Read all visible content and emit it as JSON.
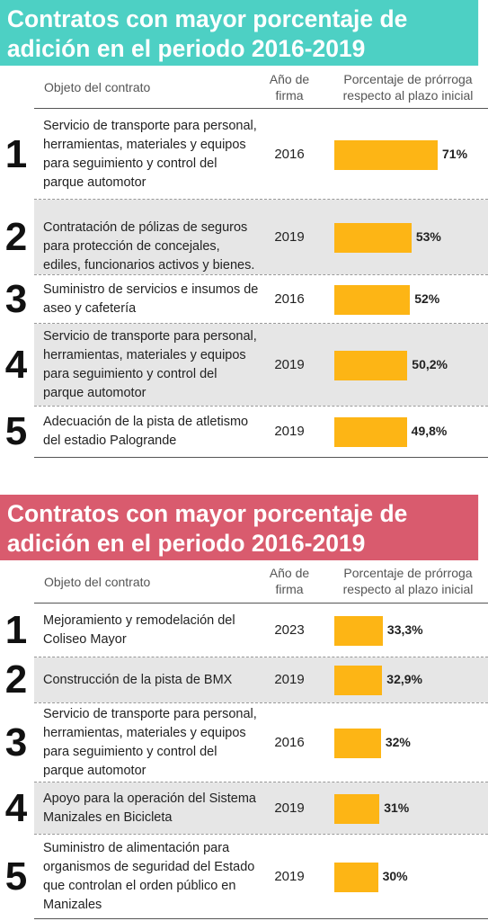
{
  "colors": {
    "accent_teal": "#4dd0c4",
    "accent_red": "#d95b6e",
    "bar": "#fdb515",
    "shade": "#e6e6e6"
  },
  "headers": {
    "object": "Objeto del contrato",
    "year_line1": "Año de",
    "year_line2": "firma",
    "pct_line1": "Porcentaje de prórroga",
    "pct_line2": "respecto al plazo inicial"
  },
  "chart_data": [
    {
      "type": "bar",
      "title_line1": "Contratos con mayor porcentaje de",
      "title_line2": "adición en el periodo 2016-2019",
      "rows": [
        {
          "rank": "1",
          "object": "Servicio de transporte para personal, herramientas, materiales y equipos para seguimiento y control del parque automotor",
          "year": "2016",
          "value": 71,
          "label": "71%"
        },
        {
          "rank": "2",
          "object": "Contratación de pólizas de seguros para protección de concejales, ediles, funcionarios activos y bienes.",
          "year": "2019",
          "value": 53,
          "label": "53%"
        },
        {
          "rank": "3",
          "object": "Suministro de servicios e insumos de aseo y cafetería",
          "year": "2016",
          "value": 52,
          "label": "52%"
        },
        {
          "rank": "4",
          "object": "Servicio de transporte para personal, herramientas, materiales y equipos para seguimiento y control del parque automotor",
          "year": "2019",
          "value": 50.2,
          "label": "50,2%"
        },
        {
          "rank": "5",
          "object": "Adecuación de la pista de atletismo del estadio Palogrande",
          "year": "2019",
          "value": 49.8,
          "label": "49,8%"
        }
      ]
    },
    {
      "type": "bar",
      "title_line1": "Contratos con mayor porcentaje de",
      "title_line2": "adición en el periodo 2016-2019",
      "rows": [
        {
          "rank": "1",
          "object": "Mejoramiento y remodelación del Coliseo Mayor",
          "year": "2023",
          "value": 33.3,
          "label": "33,3%"
        },
        {
          "rank": "2",
          "object": "Construcción de la pista de BMX",
          "year": "2019",
          "value": 32.9,
          "label": "32,9%"
        },
        {
          "rank": "3",
          "object": "Servicio de transporte para personal, herramientas, materiales y equipos para seguimiento y control del parque automotor",
          "year": "2016",
          "value": 32,
          "label": "32%"
        },
        {
          "rank": "4",
          "object": "Apoyo para la operación del Sistema Manizales en Bicicleta",
          "year": "2019",
          "value": 31,
          "label": "31%"
        },
        {
          "rank": "5",
          "object": "Suministro de alimentación para organismos de seguridad del Estado que controlan el orden público en Manizales",
          "year": "2019",
          "value": 30,
          "label": "30%"
        }
      ]
    }
  ]
}
